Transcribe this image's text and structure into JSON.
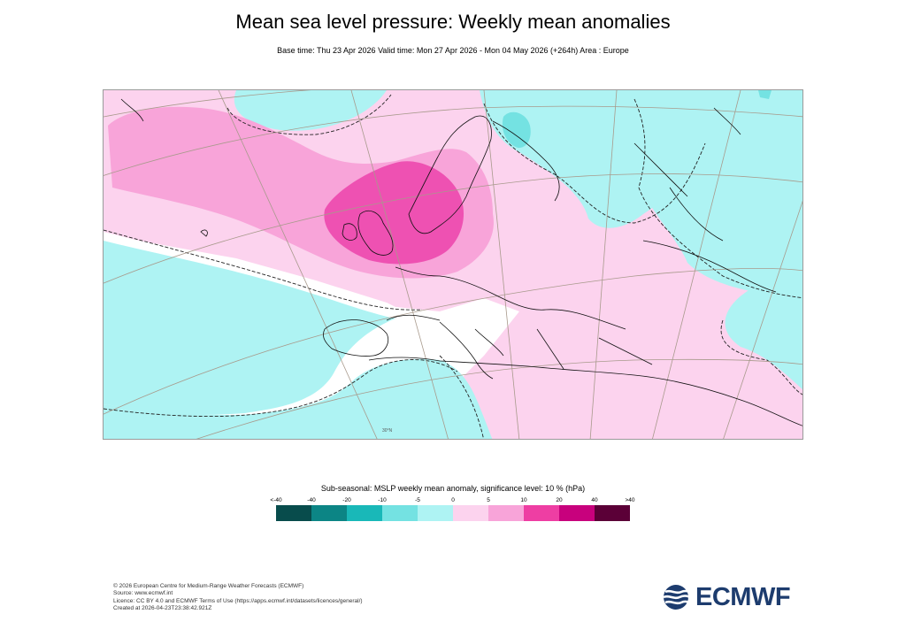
{
  "header": {
    "title": "Mean sea level pressure: Weekly mean anomalies",
    "subtitle": "Base time: Thu 23 Apr 2026 Valid time: Mon 27 Apr 2026 - Mon 04 May 2026 (+264h) Area : Europe"
  },
  "map": {
    "area": "Europe",
    "graticule_labels": [
      "30°N"
    ],
    "anomaly_colors": {
      "white": "#ffffff",
      "light_cyan": "#aef3f3",
      "cyan": "#74e2e2",
      "light_pink": "#fcd3ee",
      "pink": "#f8a4d9",
      "magenta": "#ee51b2",
      "dark_magenta": "#c8017d"
    }
  },
  "legend": {
    "title": "Sub-seasonal: MSLP weekly mean anomaly, significance level: 10 % (hPa)",
    "labels": [
      "<-40",
      "-40",
      "-20",
      "-10",
      "-5",
      "0",
      "5",
      "10",
      "20",
      "40",
      ">40"
    ],
    "colors": [
      "#084c4c",
      "#0c8585",
      "#19b8b8",
      "#74e2e2",
      "#aef3f3",
      "#fcd3ee",
      "#f8a4d9",
      "#ee3ea3",
      "#c8017d",
      "#5b0037"
    ]
  },
  "footer": {
    "lines": [
      "© 2026 European Centre for Medium-Range Weather Forecasts (ECMWF)",
      "Source: www.ecmwf.int",
      "Licence: CC BY 4.0 and ECMWF Terms of Use (https://apps.ecmwf.int/datasets/licences/general/)",
      "Created at 2026-04-23T23:38:42.921Z"
    ]
  },
  "logo": {
    "text": "ECMWF",
    "color": "#1d3c6e"
  }
}
